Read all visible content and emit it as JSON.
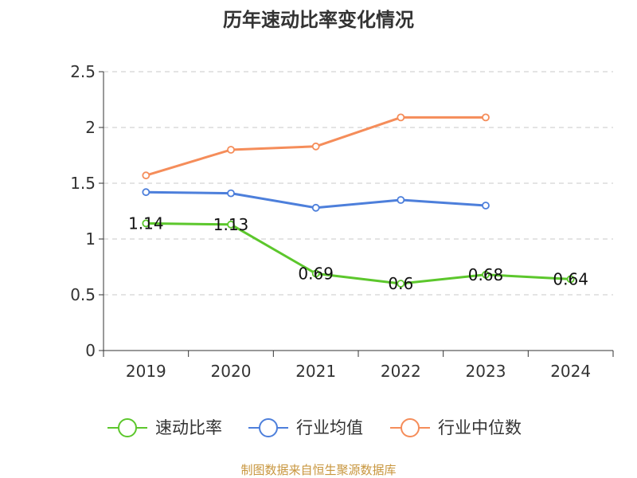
{
  "chart_data": {
    "type": "line",
    "title": "历年速动比率变化情况",
    "categories": [
      "2019",
      "2020",
      "2021",
      "2022",
      "2023",
      "2024"
    ],
    "ylim": [
      0,
      2.5
    ],
    "yticks": [
      "0",
      "0.5",
      "1",
      "1.5",
      "2",
      "2.5"
    ],
    "grid": true,
    "legend_position": "bottom",
    "series": [
      {
        "name": "速动比率",
        "color": "#5cc72c",
        "values": [
          1.14,
          1.13,
          0.69,
          0.6,
          0.68,
          0.64
        ],
        "labels": [
          "1.14",
          "1.13",
          "0.69",
          "0.6",
          "0.68",
          "0.64"
        ]
      },
      {
        "name": "行业均值",
        "color": "#4d7fdb",
        "values": [
          1.42,
          1.41,
          1.28,
          1.35,
          1.3,
          null
        ]
      },
      {
        "name": "行业中位数",
        "color": "#f58d5a",
        "values": [
          1.57,
          1.8,
          1.83,
          2.09,
          2.09,
          null
        ]
      }
    ]
  },
  "source": "制图数据来自恒生聚源数据库"
}
